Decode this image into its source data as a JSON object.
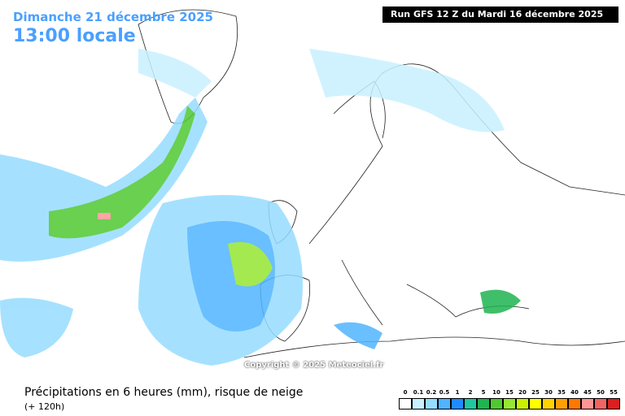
{
  "header": {
    "date": "Dimanche 21 décembre 2025",
    "time": "13:00 locale",
    "run": "Run GFS 12 Z du Mardi 16 décembre 2025"
  },
  "copyright": "Copyright © 2025 Meteociel.fr",
  "footer": {
    "title": "Précipitations en 6 heures (mm), risque de neige",
    "lead": "(+ 120h)"
  },
  "legend": {
    "levels": [
      0,
      0.1,
      0.2,
      0.5,
      1,
      2,
      5,
      10,
      15,
      20,
      25,
      30,
      35,
      40,
      45,
      50,
      55
    ],
    "colors": [
      "#ffffff",
      "#c8f0ff",
      "#96dcff",
      "#50b4ff",
      "#1e8cff",
      "#1ec8a0",
      "#1eb450",
      "#50c832",
      "#96e632",
      "#c8f000",
      "#ffff00",
      "#ffd200",
      "#ffa000",
      "#ff7800",
      "#ff9696",
      "#f06464",
      "#dc1e1e"
    ]
  }
}
